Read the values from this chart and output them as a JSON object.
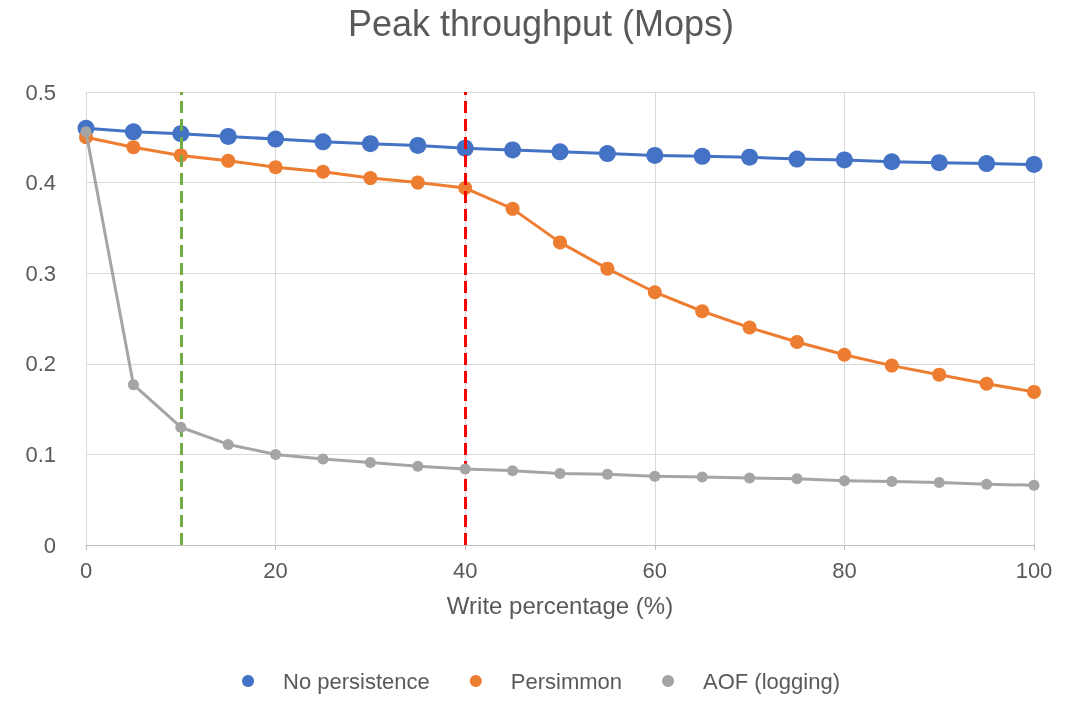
{
  "chart_data": {
    "type": "line",
    "title": "Peak throughput (Mops)",
    "xlabel": "Write percentage (%)",
    "x": [
      0,
      5,
      10,
      15,
      20,
      25,
      30,
      35,
      40,
      45,
      50,
      55,
      60,
      65,
      70,
      75,
      80,
      85,
      90,
      95,
      100
    ],
    "series": [
      {
        "name": "No persistence",
        "color": "#4472c4",
        "values": [
          0.46,
          0.456,
          0.454,
          0.451,
          0.448,
          0.445,
          0.443,
          0.441,
          0.438,
          0.436,
          0.434,
          0.432,
          0.43,
          0.429,
          0.428,
          0.426,
          0.425,
          0.423,
          0.422,
          0.421,
          0.42
        ]
      },
      {
        "name": "Persimmon",
        "color": "#ed7d31",
        "values": [
          0.45,
          0.439,
          0.43,
          0.424,
          0.417,
          0.412,
          0.405,
          0.4,
          0.394,
          0.371,
          0.334,
          0.305,
          0.279,
          0.258,
          0.24,
          0.224,
          0.21,
          0.198,
          0.188,
          0.178,
          0.169
        ]
      },
      {
        "name": "AOF (logging)",
        "color": "#a5a5a5",
        "values": [
          0.456,
          0.177,
          0.13,
          0.111,
          0.1,
          0.095,
          0.091,
          0.087,
          0.084,
          0.082,
          0.079,
          0.078,
          0.076,
          0.075,
          0.074,
          0.073,
          0.071,
          0.07,
          0.069,
          0.067,
          0.066
        ]
      }
    ],
    "xlim": [
      0,
      100
    ],
    "xticks": [
      0,
      20,
      40,
      60,
      80,
      100
    ],
    "ylim": [
      0,
      0.5
    ],
    "yticks": [
      0,
      0.1,
      0.2,
      0.3,
      0.4,
      0.5
    ],
    "ref_lines": [
      {
        "axis": "x",
        "value": 10,
        "color": "#70ad47",
        "line_style": "dashed"
      },
      {
        "axis": "x",
        "value": 40,
        "color": "#ff0000",
        "line_style": "dashed"
      }
    ],
    "grid": true,
    "legend": "bottom",
    "marker": "circle",
    "line_style": "solid"
  }
}
